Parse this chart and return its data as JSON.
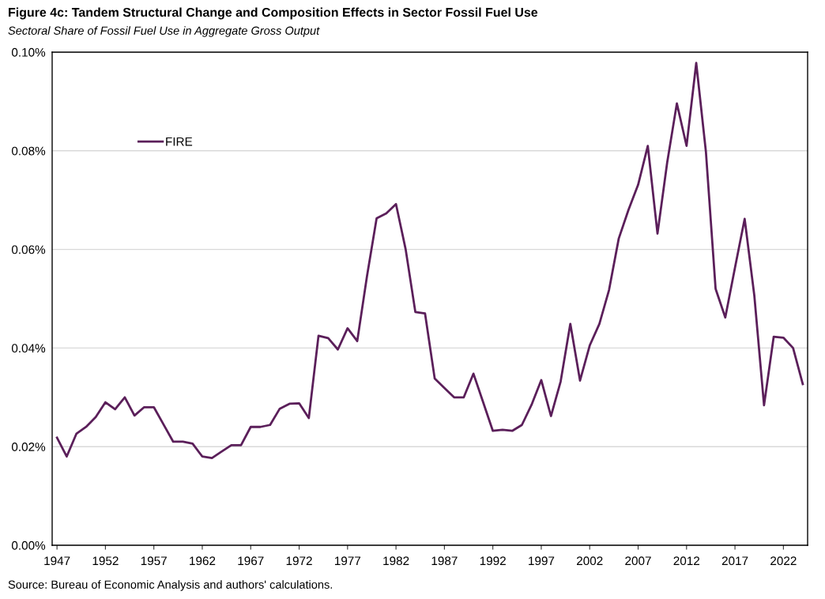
{
  "chart_data": {
    "type": "line",
    "title": "Figure 4c: Tandem Structural Change and Composition Effects in Sector Fossil Fuel Use",
    "subtitle": "Sectoral Share of Fossil Fuel Use in Aggregate Gross Output",
    "annotations": [
      "Source: Bureau of Economic Analysis and authors' calculations."
    ],
    "x": [
      1947,
      1948,
      1949,
      1950,
      1951,
      1952,
      1953,
      1954,
      1955,
      1956,
      1957,
      1958,
      1959,
      1960,
      1961,
      1962,
      1963,
      1964,
      1965,
      1966,
      1967,
      1968,
      1969,
      1970,
      1971,
      1972,
      1973,
      1974,
      1975,
      1976,
      1977,
      1978,
      1979,
      1980,
      1981,
      1982,
      1983,
      1984,
      1985,
      1986,
      1987,
      1988,
      1989,
      1990,
      1991,
      1992,
      1993,
      1994,
      1995,
      1996,
      1997,
      1998,
      1999,
      2000,
      2001,
      2002,
      2003,
      2004,
      2005,
      2006,
      2007,
      2008,
      2009,
      2010,
      2011,
      2012,
      2013,
      2014,
      2015,
      2016,
      2017,
      2018,
      2019,
      2020,
      2021,
      2022,
      2023,
      2024
    ],
    "series": [
      {
        "name": "FIRE",
        "color": "#5b1f5a",
        "values": [
          0.0218,
          0.018,
          0.0226,
          0.024,
          0.026,
          0.029,
          0.0276,
          0.03,
          0.0263,
          0.028,
          0.028,
          0.0245,
          0.021,
          0.021,
          0.0206,
          0.018,
          0.0177,
          0.019,
          0.0203,
          0.0203,
          0.024,
          0.024,
          0.0244,
          0.0277,
          0.0287,
          0.0288,
          0.0258,
          0.0425,
          0.042,
          0.0397,
          0.044,
          0.0414,
          0.0545,
          0.0663,
          0.0673,
          0.0692,
          0.06,
          0.0473,
          0.047,
          0.0338,
          0.0319,
          0.03,
          0.03,
          0.0348,
          0.029,
          0.0232,
          0.0234,
          0.0232,
          0.0244,
          0.0285,
          0.0335,
          0.0262,
          0.0332,
          0.0449,
          0.0334,
          0.0405,
          0.0449,
          0.0518,
          0.0622,
          0.068,
          0.0731,
          0.081,
          0.0632,
          0.0776,
          0.0896,
          0.081,
          0.0978,
          0.0798,
          0.052,
          0.0462,
          0.0563,
          0.0662,
          0.0506,
          0.0284,
          0.0423,
          0.0421,
          0.04,
          0.0327
        ]
      }
    ],
    "xlim": [
      1946.5,
      2024.5
    ],
    "xticks": [
      1947,
      1952,
      1957,
      1962,
      1967,
      1972,
      1977,
      1982,
      1987,
      1992,
      1997,
      2002,
      2007,
      2012,
      2017,
      2022
    ],
    "ylim": [
      0,
      0.1
    ],
    "yticks": [
      {
        "value": 0,
        "label": "0.00%"
      },
      {
        "value": 0.02,
        "label": "0.02%"
      },
      {
        "value": 0.04,
        "label": "0.04%"
      },
      {
        "value": 0.06,
        "label": "0.06%"
      },
      {
        "value": 0.08,
        "label": "0.08%"
      },
      {
        "value": 0.1,
        "label": "0.10%"
      }
    ],
    "grid": "y",
    "legend": "top left",
    "marker": "none",
    "line_style": "solid"
  }
}
